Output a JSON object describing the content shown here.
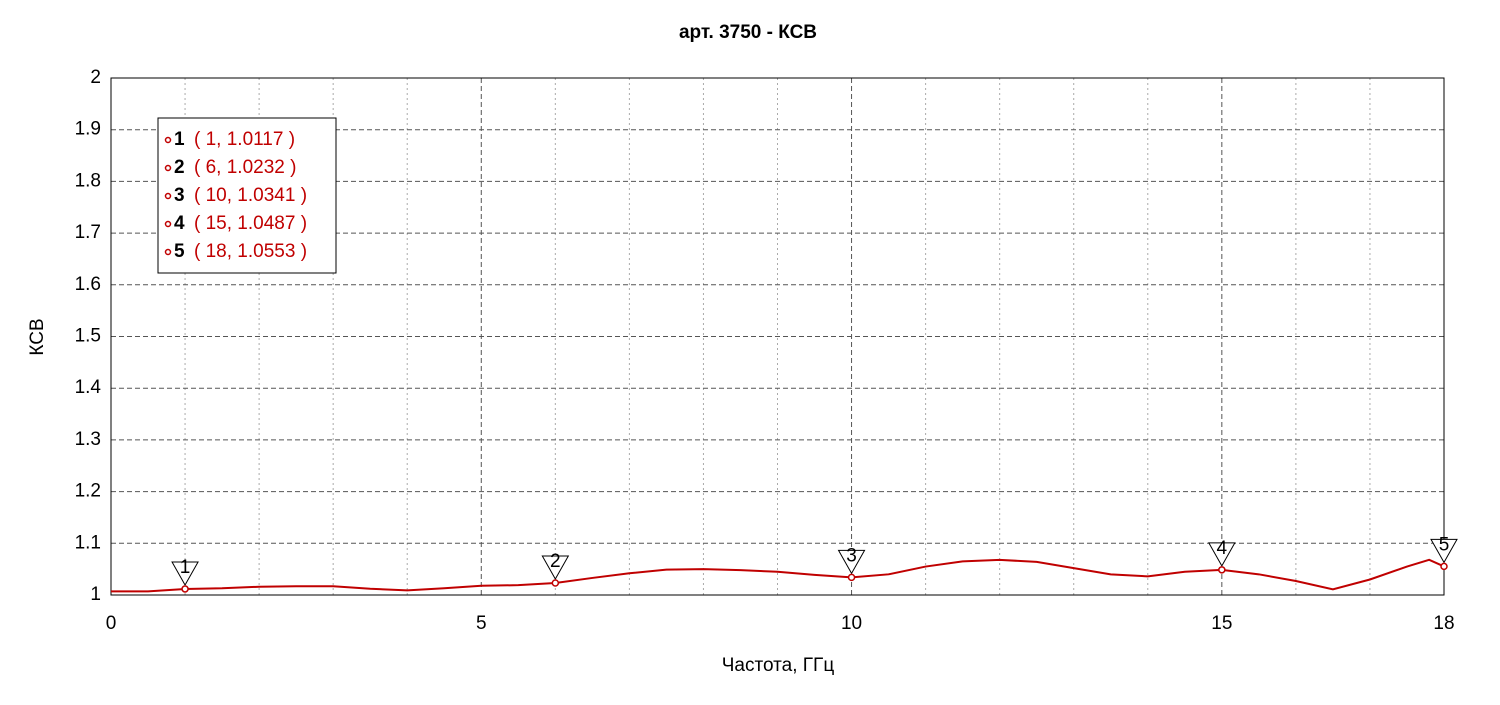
{
  "chart_data": {
    "type": "line",
    "title": "арт. 3750 - КСВ",
    "x_label": "Частота, ГГц",
    "y_label": "КСВ",
    "xlim": [
      0,
      18
    ],
    "xticks": [
      0,
      5,
      10,
      15,
      18
    ],
    "xminorticks": [
      1,
      2,
      3,
      4,
      6,
      7,
      8,
      9,
      11,
      12,
      13,
      14,
      16,
      17
    ],
    "ylim": [
      1,
      2
    ],
    "yticks": [
      1,
      1.1,
      1.2,
      1.3,
      1.4,
      1.5,
      1.6,
      1.7,
      1.8,
      1.9,
      2
    ],
    "grid": true,
    "series": [
      {
        "color": "#c00000",
        "x": [
          0,
          0.5,
          1,
          1.5,
          2,
          2.5,
          3,
          3.5,
          4,
          4.5,
          5,
          5.5,
          6,
          6.5,
          7,
          7.5,
          8,
          8.5,
          9,
          9.5,
          10,
          10.5,
          11,
          11.5,
          12,
          12.5,
          13,
          13.5,
          14,
          14.5,
          15,
          15.5,
          16,
          16.5,
          17,
          17.5,
          17.8,
          18
        ],
        "values": [
          1.007,
          1.007,
          1.0117,
          1.013,
          1.016,
          1.017,
          1.017,
          1.012,
          1.009,
          1.013,
          1.018,
          1.019,
          1.0232,
          1.033,
          1.042,
          1.049,
          1.05,
          1.048,
          1.045,
          1.039,
          1.0341,
          1.04,
          1.055,
          1.065,
          1.068,
          1.064,
          1.052,
          1.04,
          1.036,
          1.045,
          1.0487,
          1.04,
          1.027,
          1.011,
          1.03,
          1.055,
          1.068,
          1.0553
        ]
      }
    ],
    "markers": [
      {
        "label": "1",
        "x": 1,
        "y": 1.0117,
        "text": "( 1, 1.0117 )"
      },
      {
        "label": "2",
        "x": 6,
        "y": 1.0232,
        "text": "( 6, 1.0232 )"
      },
      {
        "label": "3",
        "x": 10,
        "y": 1.0341,
        "text": "( 10, 1.0341 )"
      },
      {
        "label": "4",
        "x": 15,
        "y": 1.0487,
        "text": "( 15, 1.0487 )"
      },
      {
        "label": "5",
        "x": 18,
        "y": 1.0553,
        "text": "( 18, 1.0553 )"
      }
    ]
  }
}
